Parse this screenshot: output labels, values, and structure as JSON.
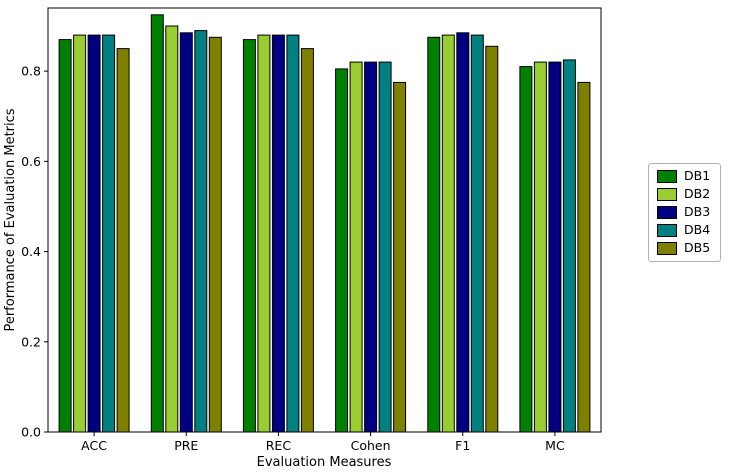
{
  "chart_data": {
    "type": "bar",
    "title": "",
    "xlabel": "Evaluation Measures",
    "ylabel": "Performance of Evaluation Metrics",
    "categories": [
      "ACC",
      "PRE",
      "REC",
      "Cohen",
      "F1",
      "MC"
    ],
    "series": [
      {
        "name": "DB1",
        "color": "#008000",
        "values": [
          0.87,
          0.925,
          0.87,
          0.805,
          0.875,
          0.81
        ]
      },
      {
        "name": "DB2",
        "color": "#9ACD32",
        "values": [
          0.88,
          0.9,
          0.88,
          0.82,
          0.88,
          0.82
        ]
      },
      {
        "name": "DB3",
        "color": "#000080",
        "values": [
          0.88,
          0.885,
          0.88,
          0.82,
          0.885,
          0.82
        ]
      },
      {
        "name": "DB4",
        "color": "#008080",
        "values": [
          0.88,
          0.89,
          0.88,
          0.82,
          0.88,
          0.825
        ]
      },
      {
        "name": "DB5",
        "color": "#808000",
        "values": [
          0.85,
          0.875,
          0.85,
          0.775,
          0.855,
          0.775
        ]
      }
    ],
    "ylim": [
      0.0,
      0.94
    ],
    "yticks": [
      "0.0",
      "0.2",
      "0.4",
      "0.6",
      "0.8"
    ],
    "grid": false,
    "legend_position": "right-outside",
    "bar_edge_color": "#000000",
    "axes_color": "#000000"
  }
}
